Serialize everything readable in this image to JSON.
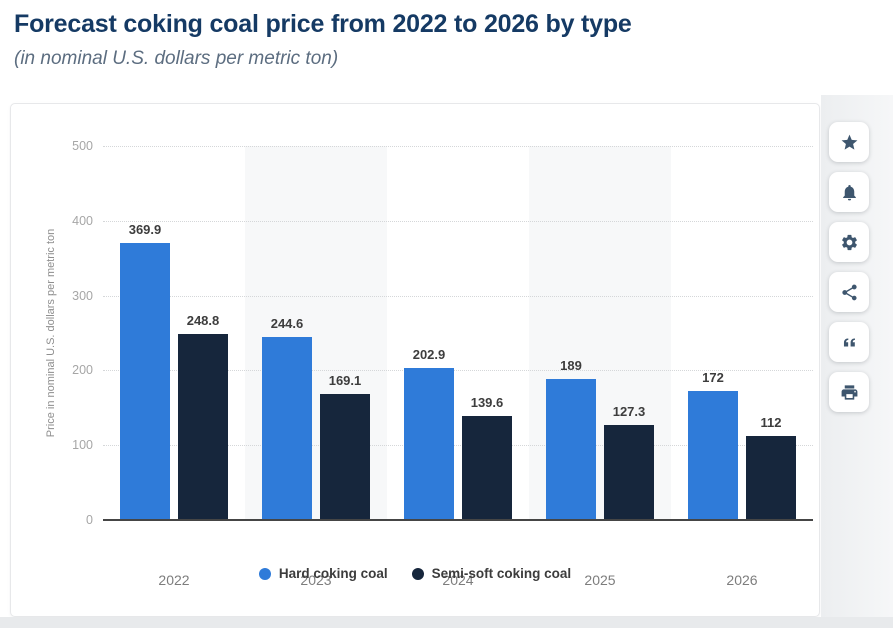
{
  "header": {
    "title": "Forecast coking coal price from 2022 to 2026 by type",
    "subtitle": "(in nominal U.S. dollars per metric ton)"
  },
  "chart_data": {
    "type": "bar",
    "title": "Forecast coking coal price from 2022 to 2026 by type",
    "subtitle": "(in nominal U.S. dollars per metric ton)",
    "categories": [
      "2022",
      "2023",
      "2024",
      "2025",
      "2026"
    ],
    "series": [
      {
        "name": "Hard coking coal",
        "color": "#2f7bd9",
        "values": [
          369.9,
          244.6,
          202.9,
          189,
          172
        ]
      },
      {
        "name": "Semi-soft coking coal",
        "color": "#16263c",
        "values": [
          248.8,
          169.1,
          139.6,
          127.3,
          112
        ]
      }
    ],
    "ylabel": "Price in nominal U.S. dollars per metric ton",
    "xlabel": "",
    "ylim": [
      0,
      500
    ],
    "yticks": [
      0,
      100,
      200,
      300,
      400,
      500
    ],
    "grid": "horizontal dotted",
    "plot_band_indices": [
      1,
      3
    ],
    "legend_position": "bottom",
    "data_labels": true
  },
  "toolbar": {
    "buttons": [
      {
        "id": "favorite",
        "icon": "star-icon"
      },
      {
        "id": "notifications",
        "icon": "bell-icon"
      },
      {
        "id": "settings",
        "icon": "gear-icon"
      },
      {
        "id": "share",
        "icon": "share-icon"
      },
      {
        "id": "cite",
        "icon": "quote-icon"
      },
      {
        "id": "print",
        "icon": "printer-icon"
      }
    ]
  },
  "colors": {
    "title": "#153a64",
    "subtitle": "#5c6d80",
    "hard_coking_coal": "#2f7bd9",
    "semi_soft_coking_coal": "#16263c",
    "plot_band": "#f7f8f9",
    "gridline": "#d5d7d9",
    "axis_line": "#454545",
    "tick_label": "#a6a6a6",
    "category_label": "#7d7d7d",
    "data_label": "#3d3d3d"
  }
}
